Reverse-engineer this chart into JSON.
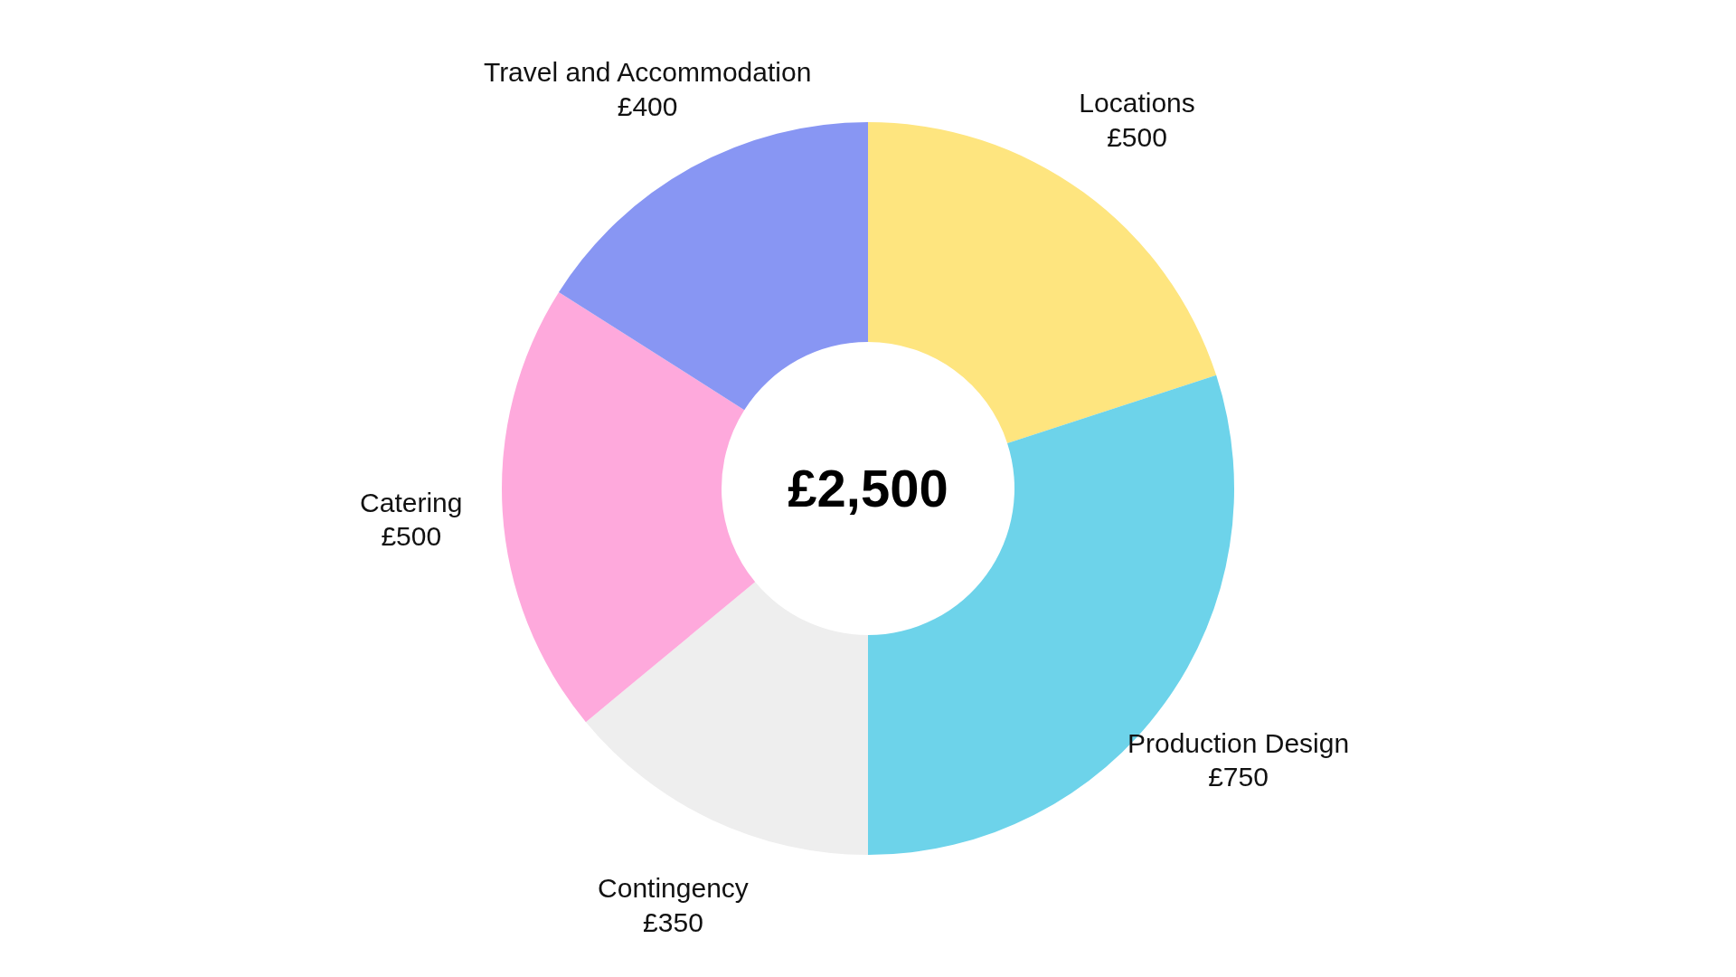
{
  "chart_data": {
    "type": "donut",
    "title": "£2,500",
    "categories": [
      "Locations",
      "Production Design",
      "Contingency",
      "Catering",
      "Travel and Accommodation"
    ],
    "values": [
      500,
      750,
      350,
      500,
      400
    ],
    "value_labels": [
      "£500",
      "£750",
      "£350",
      "£500",
      "£400"
    ],
    "colors": [
      "#fee57f",
      "#6dd3ea",
      "#eeeeee",
      "#fea9dc",
      "#8896f3"
    ],
    "legend": false
  }
}
